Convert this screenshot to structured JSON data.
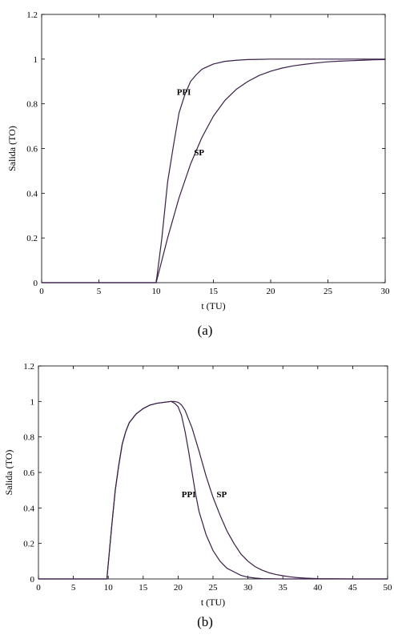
{
  "chart_data": [
    {
      "type": "line",
      "panel_label": "(a)",
      "xlabel": "t (TU)",
      "ylabel": "Salida (TO)",
      "xlim": [
        0,
        30
      ],
      "ylim": [
        0,
        1.2
      ],
      "xticks": [
        0,
        5,
        10,
        15,
        20,
        25,
        30
      ],
      "yticks": [
        0,
        0.2,
        0.4,
        0.6,
        0.8,
        1,
        1.2
      ],
      "xtick_labels": [
        "0",
        "5",
        "10",
        "15",
        "20",
        "25",
        "30"
      ],
      "ytick_labels": [
        "0",
        "0.2",
        "0.4",
        "0.6",
        "0.8",
        "1",
        "1.2"
      ],
      "grid": false,
      "series": [
        {
          "name": "PPI",
          "color": "#3a1f4a",
          "x": [
            0,
            10,
            10.5,
            11,
            11.5,
            12,
            12.5,
            13,
            13.5,
            14,
            15,
            16,
            17,
            18,
            19,
            20,
            22,
            25,
            30
          ],
          "y": [
            0,
            0,
            0.2,
            0.45,
            0.61,
            0.76,
            0.84,
            0.9,
            0.93,
            0.955,
            0.978,
            0.99,
            0.995,
            0.998,
            0.999,
            1.0,
            1.0,
            1.0,
            1.0
          ]
        },
        {
          "name": "SP",
          "color": "#3a1f4a",
          "x": [
            0,
            10,
            11,
            12,
            13,
            14,
            15,
            16,
            17,
            18,
            19,
            20,
            21,
            22,
            23,
            24,
            25,
            26,
            27,
            28,
            29,
            30
          ],
          "y": [
            0,
            0,
            0.2,
            0.38,
            0.53,
            0.65,
            0.745,
            0.815,
            0.865,
            0.9,
            0.927,
            0.946,
            0.96,
            0.97,
            0.977,
            0.983,
            0.988,
            0.991,
            0.993,
            0.995,
            0.997,
            0.998
          ]
        }
      ],
      "annotations": [
        {
          "text": "PPI",
          "x": 11.8,
          "y": 0.84
        },
        {
          "text": "SP",
          "x": 13.3,
          "y": 0.57
        }
      ]
    },
    {
      "type": "line",
      "panel_label": "(b)",
      "xlabel": "t (TU)",
      "ylabel": "Salida (TO)",
      "xlim": [
        0,
        50
      ],
      "ylim": [
        0,
        1.2
      ],
      "xticks": [
        0,
        5,
        10,
        15,
        20,
        25,
        30,
        35,
        40,
        45,
        50
      ],
      "yticks": [
        0,
        0.2,
        0.4,
        0.6,
        0.8,
        1,
        1.2
      ],
      "xtick_labels": [
        "0",
        "5",
        "10",
        "15",
        "20",
        "25",
        "30",
        "35",
        "40",
        "45",
        "50"
      ],
      "ytick_labels": [
        "0",
        "0.2",
        "0.4",
        "0.6",
        "0.8",
        "1",
        "1.2"
      ],
      "grid": false,
      "series": [
        {
          "name": "PPI",
          "color": "#3a1f4a",
          "x": [
            0,
            9.8,
            10.5,
            11,
            11.5,
            12,
            12.5,
            13,
            14,
            15,
            16,
            17,
            18,
            19,
            19.5,
            20,
            20.5,
            21,
            21.5,
            22,
            22.5,
            23,
            24,
            25,
            26,
            27,
            28,
            29,
            30,
            31,
            32,
            35,
            40,
            50
          ],
          "y": [
            0,
            0,
            0.3,
            0.5,
            0.64,
            0.76,
            0.83,
            0.88,
            0.93,
            0.96,
            0.98,
            0.99,
            0.995,
            1.0,
            0.99,
            0.97,
            0.92,
            0.83,
            0.72,
            0.6,
            0.48,
            0.38,
            0.25,
            0.16,
            0.1,
            0.06,
            0.04,
            0.02,
            0.01,
            0.005,
            0.002,
            0,
            0,
            0
          ]
        },
        {
          "name": "SP",
          "color": "#3a1f4a",
          "x": [
            0,
            9.8,
            10.5,
            11,
            11.5,
            12,
            12.5,
            13,
            14,
            15,
            16,
            17,
            18,
            19,
            19.5,
            20,
            20.5,
            21,
            22,
            23,
            24,
            25,
            26,
            27,
            28,
            29,
            30,
            31,
            32,
            33,
            34,
            35,
            36,
            37,
            38,
            40,
            42,
            45,
            50
          ],
          "y": [
            0,
            0,
            0.3,
            0.5,
            0.64,
            0.76,
            0.83,
            0.88,
            0.93,
            0.96,
            0.98,
            0.99,
            0.995,
            1.0,
            1.0,
            0.995,
            0.98,
            0.95,
            0.85,
            0.72,
            0.58,
            0.46,
            0.36,
            0.27,
            0.2,
            0.14,
            0.1,
            0.07,
            0.05,
            0.035,
            0.025,
            0.018,
            0.012,
            0.008,
            0.005,
            0.002,
            0.001,
            0,
            0
          ]
        }
      ],
      "annotations": [
        {
          "text": "PPI",
          "x": 20.5,
          "y": 0.46
        },
        {
          "text": "SP",
          "x": 25.5,
          "y": 0.46
        }
      ]
    }
  ]
}
